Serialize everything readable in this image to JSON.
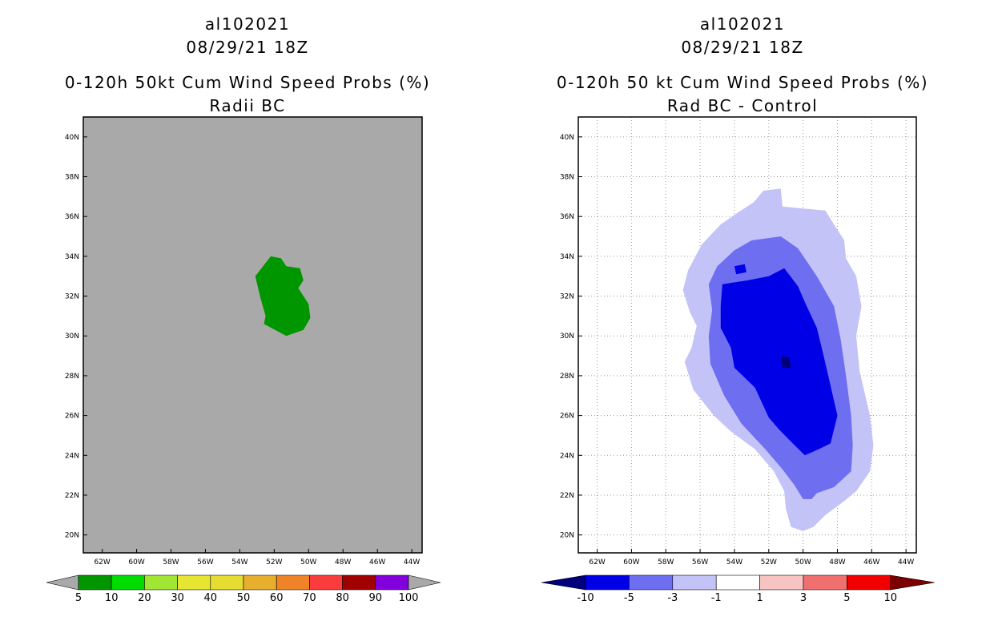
{
  "left_panel": {
    "storm_id": "al102021",
    "datetime": "08/29/21 18Z",
    "title": "0-120h 50kt Cum Wind Speed Probs (%)",
    "subtitle": "Radii BC"
  },
  "right_panel": {
    "storm_id": "al102021",
    "datetime": "08/29/21 18Z",
    "title": "0-120h 50 kt Cum Wind Speed Probs (%)",
    "subtitle": "Rad BC - Control"
  },
  "chart_data": [
    {
      "type": "heatmap",
      "title": "0-120h 50kt Cum Wind Speed Probs (%)",
      "subtitle": "Radii BC",
      "x_ticks": [
        "62W",
        "60W",
        "58W",
        "56W",
        "54W",
        "52W",
        "50W",
        "48W",
        "46W",
        "44W"
      ],
      "y_ticks": [
        "40N",
        "38N",
        "36N",
        "34N",
        "32N",
        "30N",
        "28N",
        "26N",
        "24N",
        "22N",
        "20N"
      ],
      "lon_range": [
        -63.1,
        -43.4
      ],
      "lat_range": [
        19.1,
        41.0
      ],
      "background_color": "#a9a9a9",
      "colorbar": {
        "levels": [
          "5",
          "10",
          "20",
          "30",
          "40",
          "50",
          "60",
          "70",
          "80",
          "90",
          "100"
        ],
        "colors": [
          "#009600",
          "#00dc00",
          "#a0e632",
          "#e6e632",
          "#e6dc32",
          "#e6af2d",
          "#f08228",
          "#fa3c3c",
          "#a00000",
          "#8200dc"
        ],
        "under_color": "#a9a9a9",
        "over_color": "#a9a9a9"
      },
      "contours": [
        {
          "level": "5-10",
          "color": "#009600",
          "polygon_lonlat": [
            [
              -53.1,
              33.0
            ],
            [
              -52.2,
              34.0
            ],
            [
              -51.6,
              33.9
            ],
            [
              -51.3,
              33.5
            ],
            [
              -50.5,
              33.4
            ],
            [
              -50.3,
              32.8
            ],
            [
              -50.6,
              32.4
            ],
            [
              -50.0,
              31.6
            ],
            [
              -49.9,
              30.9
            ],
            [
              -50.3,
              30.3
            ],
            [
              -51.3,
              30.0
            ],
            [
              -52.6,
              30.6
            ],
            [
              -52.5,
              31.0
            ],
            [
              -52.8,
              31.9
            ],
            [
              -53.1,
              33.0
            ]
          ]
        }
      ]
    },
    {
      "type": "heatmap",
      "title": "0-120h 50 kt Cum Wind Speed Probs (%)",
      "subtitle": "Rad BC - Control",
      "x_ticks": [
        "62W",
        "60W",
        "58W",
        "56W",
        "54W",
        "52W",
        "50W",
        "48W",
        "46W",
        "44W"
      ],
      "y_ticks": [
        "40N",
        "38N",
        "36N",
        "34N",
        "32N",
        "30N",
        "28N",
        "26N",
        "24N",
        "22N",
        "20N"
      ],
      "lon_range": [
        -63.1,
        -43.4
      ],
      "lat_range": [
        19.1,
        41.0
      ],
      "grid": true,
      "colorbar": {
        "levels": [
          "-10",
          "-5",
          "-3",
          "-1",
          "1",
          "3",
          "5",
          "10"
        ],
        "colors": [
          "#0000e6",
          "#6e6ef0",
          "#c3c3f8",
          "#ffffff",
          "#f8c3c3",
          "#f07070",
          "#f00000"
        ],
        "under_color": "#00007d",
        "over_color": "#7d0000"
      },
      "contours": [
        {
          "level": "-1 to -3",
          "color": "#c3c3f8",
          "polygon_lonlat": [
            [
              -52.3,
              37.3
            ],
            [
              -51.3,
              37.4
            ],
            [
              -51.2,
              36.5
            ],
            [
              -50.0,
              36.4
            ],
            [
              -48.7,
              36.3
            ],
            [
              -48.2,
              35.6
            ],
            [
              -47.6,
              34.8
            ],
            [
              -47.5,
              33.9
            ],
            [
              -46.9,
              33.0
            ],
            [
              -46.6,
              31.5
            ],
            [
              -46.9,
              30.0
            ],
            [
              -46.7,
              28.2
            ],
            [
              -46.1,
              26.0
            ],
            [
              -45.9,
              24.5
            ],
            [
              -46.1,
              23.2
            ],
            [
              -46.9,
              22.2
            ],
            [
              -47.6,
              21.7
            ],
            [
              -48.7,
              21.0
            ],
            [
              -49.4,
              20.4
            ],
            [
              -50.0,
              20.2
            ],
            [
              -50.7,
              20.4
            ],
            [
              -51.0,
              21.3
            ],
            [
              -51.1,
              22.2
            ],
            [
              -51.7,
              23.2
            ],
            [
              -52.8,
              24.3
            ],
            [
              -54.2,
              25.2
            ],
            [
              -55.2,
              26.0
            ],
            [
              -56.4,
              27.3
            ],
            [
              -56.9,
              28.7
            ],
            [
              -56.5,
              29.4
            ],
            [
              -56.2,
              30.5
            ],
            [
              -56.6,
              31.2
            ],
            [
              -57.0,
              32.3
            ],
            [
              -56.7,
              33.3
            ],
            [
              -55.9,
              34.6
            ],
            [
              -54.8,
              35.6
            ],
            [
              -53.8,
              36.2
            ],
            [
              -52.9,
              36.7
            ],
            [
              -52.3,
              37.3
            ]
          ]
        },
        {
          "level": "-3 to -5",
          "color": "#6e6ef0",
          "polygon_lonlat": [
            [
              -53.0,
              34.8
            ],
            [
              -51.3,
              35.0
            ],
            [
              -50.3,
              34.4
            ],
            [
              -49.2,
              33.0
            ],
            [
              -48.2,
              31.5
            ],
            [
              -47.8,
              29.8
            ],
            [
              -47.5,
              28.0
            ],
            [
              -47.2,
              26.0
            ],
            [
              -47.1,
              24.5
            ],
            [
              -47.2,
              23.2
            ],
            [
              -48.2,
              22.4
            ],
            [
              -49.2,
              22.1
            ],
            [
              -49.5,
              21.8
            ],
            [
              -50.0,
              21.8
            ],
            [
              -50.5,
              22.5
            ],
            [
              -51.2,
              23.3
            ],
            [
              -52.2,
              24.3
            ],
            [
              -53.6,
              25.6
            ],
            [
              -54.6,
              27.0
            ],
            [
              -55.4,
              28.6
            ],
            [
              -55.5,
              30.0
            ],
            [
              -55.3,
              31.3
            ],
            [
              -55.5,
              32.6
            ],
            [
              -55.0,
              33.5
            ],
            [
              -54.0,
              34.3
            ],
            [
              -53.0,
              34.8
            ]
          ]
        },
        {
          "level": "-5 to -10",
          "color": "#0000e6",
          "polygon_lonlat": [
            [
              -54.7,
              32.6
            ],
            [
              -53.2,
              32.8
            ],
            [
              -52.0,
              33.0
            ],
            [
              -51.1,
              33.4
            ],
            [
              -50.3,
              32.5
            ],
            [
              -49.9,
              31.7
            ],
            [
              -49.2,
              30.4
            ],
            [
              -48.8,
              29.0
            ],
            [
              -48.4,
              27.5
            ],
            [
              -48.0,
              26.0
            ],
            [
              -48.4,
              24.6
            ],
            [
              -49.1,
              24.3
            ],
            [
              -49.9,
              24.0
            ],
            [
              -50.6,
              24.6
            ],
            [
              -51.4,
              25.3
            ],
            [
              -52.0,
              25.9
            ],
            [
              -52.8,
              27.4
            ],
            [
              -54.0,
              28.4
            ],
            [
              -54.2,
              29.4
            ],
            [
              -54.8,
              30.4
            ],
            [
              -54.8,
              31.5
            ],
            [
              -54.7,
              32.6
            ]
          ]
        },
        {
          "level": "< -10",
          "color": "#00007d",
          "polygon_lonlat": [
            [
              -51.3,
              29.0
            ],
            [
              -50.8,
              28.9
            ],
            [
              -50.7,
              28.4
            ],
            [
              -51.2,
              28.4
            ],
            [
              -51.3,
              29.0
            ]
          ]
        },
        {
          "level": "-5 to -10",
          "color": "#0000e6",
          "polygon_lonlat": [
            [
              -54.0,
              33.5
            ],
            [
              -53.4,
              33.6
            ],
            [
              -53.3,
              33.2
            ],
            [
              -53.9,
              33.1
            ],
            [
              -54.0,
              33.5
            ]
          ]
        }
      ]
    }
  ]
}
